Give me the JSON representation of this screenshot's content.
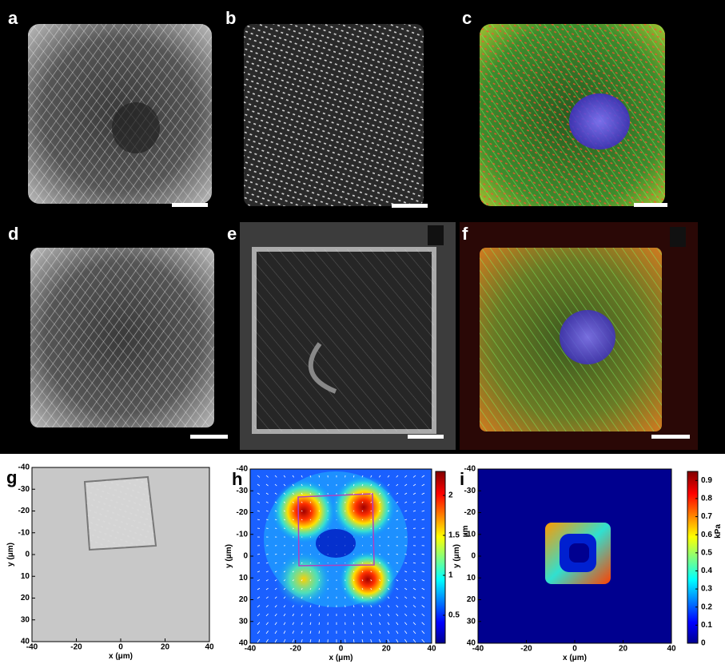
{
  "panels": [
    {
      "label": "a"
    },
    {
      "label": "b"
    },
    {
      "label": "c"
    },
    {
      "label": "d"
    },
    {
      "label": "e"
    },
    {
      "label": "f"
    }
  ],
  "plots": [
    {
      "label": "g",
      "xlabel": "x (μm)",
      "ylabel": "y (μm)",
      "xlim": [
        -40,
        40
      ],
      "ylim": [
        -40,
        40
      ],
      "xticks": [
        -40,
        -20,
        0,
        20,
        40
      ],
      "yticks": [
        -40,
        -30,
        -20,
        -10,
        0,
        10,
        20,
        30,
        40
      ]
    },
    {
      "label": "h",
      "xlabel": "x (μm)",
      "ylabel": "y (μm)",
      "xlim": [
        -40,
        40
      ],
      "ylim": [
        -40,
        40
      ],
      "xticks": [
        -40,
        -20,
        0,
        20,
        40
      ],
      "yticks": [
        -40,
        -30,
        -20,
        -10,
        0,
        10,
        20,
        30,
        40
      ],
      "colorbar": {
        "label": "μm",
        "lim": [
          0.15,
          2.3
        ],
        "ticks": [
          0.5,
          1,
          1.5,
          2
        ]
      }
    },
    {
      "label": "i",
      "xlabel": "x (μm)",
      "ylabel": "y (μm)",
      "xlim": [
        -40,
        40
      ],
      "ylim": [
        -40,
        40
      ],
      "xticks": [
        -40,
        -20,
        0,
        20,
        40
      ],
      "yticks": [
        -40,
        -30,
        -20,
        -10,
        0,
        10,
        20,
        30,
        40
      ],
      "colorbar": {
        "label": "kPa",
        "lim": [
          0,
          0.95
        ],
        "ticks": [
          0,
          0.1,
          0.2,
          0.3,
          0.4,
          0.5,
          0.6,
          0.7,
          0.8,
          0.9
        ]
      }
    }
  ]
}
